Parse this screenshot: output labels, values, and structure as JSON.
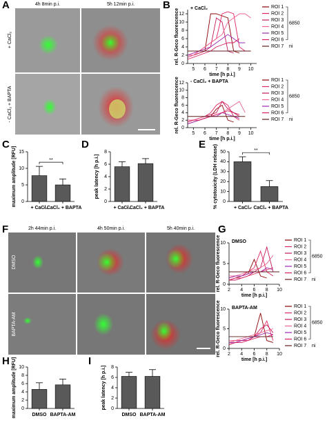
{
  "figure": {
    "panels": [
      "A",
      "B",
      "C",
      "D",
      "E",
      "F",
      "G",
      "H",
      "I"
    ],
    "image_a": {
      "times": [
        "4h 8min p.i.",
        "5h 12min p.i."
      ],
      "rows": [
        "+ CaCl₂",
        "- CaCl₂ + BAPTA"
      ]
    },
    "image_f": {
      "times": [
        "2h 44min p.i.",
        "4h 50min p.i.",
        "5h 40min p.i."
      ],
      "rows": [
        "DMSO",
        "BAPTA-AM"
      ]
    }
  },
  "chart_data": [
    {
      "type": "line",
      "title": "+ CaCl₂",
      "ylabel": "rel. R-Geco fluorescence",
      "xlabel": "time [h p.i.]",
      "x": [
        4.5,
        5,
        5.5,
        6,
        6.5,
        7,
        7.5,
        8,
        8.5,
        9,
        9.5,
        10,
        10.5
      ],
      "xlim": [
        4.5,
        10.5
      ],
      "xticks": [
        5,
        6,
        7,
        8,
        9,
        10
      ],
      "ylim": [
        0,
        13
      ],
      "yticks": [
        0,
        2,
        4,
        6,
        8,
        10,
        12
      ],
      "legend_notes": [
        "6850",
        "ni"
      ],
      "series": [
        {
          "name": "ROI 1",
          "color": "#8b0000",
          "values": [
            2,
            2,
            2.5,
            3,
            12,
            12,
            11.5,
            11,
            3,
            2.5,
            null,
            null,
            null
          ]
        },
        {
          "name": "ROI 2",
          "color": "#e0245e",
          "values": [
            2,
            2.5,
            3,
            4,
            5,
            6,
            12,
            12.5,
            12,
            4,
            3,
            null,
            null
          ]
        },
        {
          "name": "ROI 3",
          "color": "#c2185b",
          "values": [
            1.5,
            2,
            2.5,
            3,
            4,
            11,
            10,
            3,
            2.5,
            null,
            null,
            null,
            null
          ]
        },
        {
          "name": "ROI 4",
          "color": "#f06292",
          "values": [
            2,
            2,
            3,
            4,
            5,
            6,
            7,
            10,
            11,
            12,
            12,
            11,
            null
          ]
        },
        {
          "name": "ROI 5",
          "color": "#9c27b0",
          "values": [
            2,
            2.5,
            3,
            3.5,
            4,
            5,
            6,
            7,
            6,
            5,
            5,
            null,
            null
          ]
        },
        {
          "name": "ROI 6",
          "color": "#d81b60",
          "values": [
            1,
            1.5,
            2,
            2.5,
            3,
            4,
            4.5,
            5,
            5,
            6,
            null,
            null,
            null
          ]
        },
        {
          "name": "ROI 7",
          "color": "#5d1a1a",
          "values": [
            3,
            3,
            3,
            3,
            3,
            3,
            3,
            3,
            3,
            3,
            3,
            3,
            null
          ]
        }
      ]
    },
    {
      "type": "line",
      "title": "- CaCl₂ + BAPTA",
      "ylabel": "rel. R-Geco fluorescence",
      "xlabel": "time [h p.i.]",
      "x": [
        4.5,
        5,
        5.5,
        6,
        6.5,
        7,
        7.5,
        8,
        8.5,
        9,
        9.5,
        10,
        10.5
      ],
      "xlim": [
        4.5,
        10.5
      ],
      "xticks": [
        5,
        6,
        7,
        8,
        9,
        10
      ],
      "ylim": [
        0,
        12
      ],
      "yticks": [
        0,
        2,
        4,
        6,
        8,
        10,
        12
      ],
      "legend_notes": [
        "6850",
        "ni"
      ],
      "series": [
        {
          "name": "ROI 1",
          "color": "#8b0000",
          "values": [
            1,
            1.5,
            2,
            2.5,
            3,
            5,
            6,
            2,
            1.5,
            null,
            null,
            null,
            null
          ]
        },
        {
          "name": "ROI 2",
          "color": "#e0245e",
          "values": [
            1.5,
            2,
            2.5,
            3,
            4,
            6,
            7,
            6,
            3,
            2,
            null,
            null,
            null
          ]
        },
        {
          "name": "ROI 3",
          "color": "#c2185b",
          "values": [
            2,
            2,
            2.5,
            3,
            3.5,
            4,
            7,
            5,
            4,
            3,
            null,
            null,
            null
          ]
        },
        {
          "name": "ROI 4",
          "color": "#f06292",
          "values": [
            2,
            2,
            2.5,
            3,
            3,
            3.5,
            4,
            5,
            6,
            7,
            4,
            null,
            null
          ]
        },
        {
          "name": "ROI 5",
          "color": "#9c27b0",
          "values": [
            1,
            1.5,
            2,
            2.5,
            3,
            3,
            4,
            3.5,
            3,
            2.5,
            null,
            null,
            null
          ]
        },
        {
          "name": "ROI 6",
          "color": "#d81b60",
          "values": [
            1.5,
            2,
            2,
            2.5,
            3,
            3.5,
            4,
            4.5,
            4,
            3.5,
            null,
            null,
            null
          ]
        },
        {
          "name": "ROI 7",
          "color": "#5d1a1a",
          "values": [
            3,
            3,
            3,
            3,
            3,
            3,
            3,
            3,
            3,
            3,
            3,
            null,
            null
          ]
        }
      ]
    },
    {
      "type": "bar",
      "ylabel": "maximum amplitude [RFU]",
      "categories": [
        "+ CaCl₂",
        "- CaCl₂ + BAPTA"
      ],
      "values": [
        7.8,
        5
      ],
      "errors": [
        2.8,
        1.8
      ],
      "color": "#595959",
      "ylim": [
        0,
        15
      ],
      "yticks": [
        0,
        5,
        10,
        15
      ],
      "significance": "**"
    },
    {
      "type": "bar",
      "ylabel": "peak latency [h p.i.]",
      "categories": [
        "+ CaCl₂",
        "- CaCl₂ + BAPTA"
      ],
      "values": [
        5.6,
        6.1
      ],
      "errors": [
        0.8,
        0.8
      ],
      "color": "#595959",
      "ylim": [
        0,
        8
      ],
      "yticks": [
        0,
        2,
        4,
        6,
        8
      ]
    },
    {
      "type": "bar",
      "ylabel": "% cytotoxicity (LDH release)",
      "categories": [
        "+ CaCl₂",
        "- CaCl₂ + BAPTA"
      ],
      "values": [
        40,
        15
      ],
      "errors": [
        5,
        6
      ],
      "color": "#595959",
      "ylim": [
        0,
        50
      ],
      "yticks": [
        0,
        10,
        20,
        30,
        40,
        50
      ],
      "significance": "**"
    },
    {
      "type": "line",
      "title": "DMSO",
      "ylabel": "rel. R-Geco fluorescence",
      "xlabel": "time [h p.i.]",
      "x": [
        2,
        3,
        4,
        5,
        6,
        7,
        8,
        9,
        10
      ],
      "xlim": [
        2,
        10
      ],
      "xticks": [
        2,
        4,
        6,
        8,
        10
      ],
      "ylim": [
        0,
        10
      ],
      "yticks": [
        0,
        5,
        10
      ],
      "legend_notes": [
        "6850",
        "ni"
      ],
      "series": [
        {
          "name": "ROI 1",
          "color": "#8b0000",
          "values": [
            1,
            1.5,
            2,
            2.5,
            6,
            2,
            1.5,
            null,
            null
          ]
        },
        {
          "name": "ROI 2",
          "color": "#e0245e",
          "values": [
            1.5,
            2,
            2,
            3,
            4,
            8,
            3,
            2,
            null
          ]
        },
        {
          "name": "ROI 3",
          "color": "#c2185b",
          "values": [
            1,
            1,
            1.5,
            2,
            3,
            4,
            9,
            3,
            null
          ]
        },
        {
          "name": "ROI 4",
          "color": "#f06292",
          "values": [
            2,
            2,
            2.5,
            3,
            3.5,
            4,
            5,
            7,
            null
          ]
        },
        {
          "name": "ROI 5",
          "color": "#9c27b0",
          "values": [
            1.5,
            2,
            2,
            2.5,
            3,
            3,
            4,
            3.5,
            null
          ]
        },
        {
          "name": "ROI 6",
          "color": "#d81b60",
          "values": [
            1,
            1.5,
            1.5,
            2,
            2.5,
            3,
            3.5,
            4,
            null
          ]
        },
        {
          "name": "ROI 7",
          "color": "#5d1a1a",
          "values": [
            3,
            3,
            3,
            3,
            3,
            3,
            3,
            3,
            3
          ]
        }
      ]
    },
    {
      "type": "line",
      "title": "BAPTA-AM",
      "ylabel": "rel. R-Geco fluorescence",
      "xlabel": "time [h p.i.]",
      "x": [
        2,
        3,
        4,
        5,
        6,
        7,
        8,
        9,
        10
      ],
      "xlim": [
        2,
        10
      ],
      "xticks": [
        2,
        4,
        6,
        8,
        10
      ],
      "ylim": [
        0,
        10
      ],
      "yticks": [
        0,
        5,
        10
      ],
      "legend_notes": [
        "6850",
        "ni"
      ],
      "series": [
        {
          "name": "ROI 1",
          "color": "#8b0000",
          "values": [
            1,
            1.5,
            2,
            2.5,
            3,
            9,
            2,
            1.5,
            null
          ]
        },
        {
          "name": "ROI 2",
          "color": "#e0245e",
          "values": [
            1.5,
            2,
            2,
            2.5,
            3,
            4,
            7,
            2,
            null
          ]
        },
        {
          "name": "ROI 3",
          "color": "#c2185b",
          "values": [
            1,
            1.5,
            2,
            2,
            3,
            5,
            6,
            4,
            null
          ]
        },
        {
          "name": "ROI 4",
          "color": "#f06292",
          "values": [
            2,
            2,
            2.5,
            3,
            3.5,
            4,
            4.5,
            5,
            null
          ]
        },
        {
          "name": "ROI 5",
          "color": "#9c27b0",
          "values": [
            1.5,
            1.5,
            2,
            2.5,
            3,
            3.5,
            4,
            3.5,
            null
          ]
        },
        {
          "name": "ROI 6",
          "color": "#d81b60",
          "values": [
            1,
            1.5,
            1.5,
            2,
            2.5,
            3,
            3,
            3.5,
            null
          ]
        },
        {
          "name": "ROI 7",
          "color": "#5d1a1a",
          "values": [
            3,
            3,
            3,
            3,
            3,
            3,
            3,
            3,
            null
          ]
        }
      ]
    },
    {
      "type": "bar",
      "ylabel": "maximum amplitude [RFU]",
      "categories": [
        "DMSO",
        "BAPTA-AM"
      ],
      "values": [
        4.6,
        5.7
      ],
      "errors": [
        1.6,
        1.4
      ],
      "color": "#595959",
      "ylim": [
        0,
        10
      ],
      "yticks": [
        0,
        2,
        4,
        6,
        8,
        10
      ]
    },
    {
      "type": "bar",
      "ylabel": "peak latency [h p.i.]",
      "categories": [
        "DMSO",
        "BAPTA-AM"
      ],
      "values": [
        6.2,
        6.2
      ],
      "errors": [
        0.8,
        1.3
      ],
      "color": "#595959",
      "ylim": [
        0,
        8
      ],
      "yticks": [
        0,
        2,
        4,
        6,
        8
      ]
    }
  ]
}
